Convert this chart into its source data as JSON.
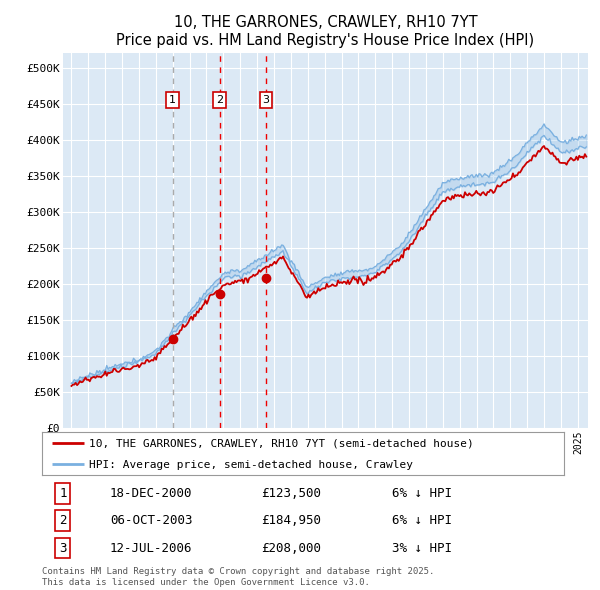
{
  "title": "10, THE GARRONES, CRAWLEY, RH10 7YT",
  "subtitle": "Price paid vs. HM Land Registry's House Price Index (HPI)",
  "legend_property": "10, THE GARRONES, CRAWLEY, RH10 7YT (semi-detached house)",
  "legend_hpi": "HPI: Average price, semi-detached house, Crawley",
  "footnote_line1": "Contains HM Land Registry data © Crown copyright and database right 2025.",
  "footnote_line2": "This data is licensed under the Open Government Licence v3.0.",
  "bg_color": "#dce9f5",
  "grid_color": "#ffffff",
  "sale_markers": [
    {
      "label": 1,
      "date_x": 2001.0,
      "price": 123500,
      "text": "18-DEC-2000",
      "amount": "£123,500",
      "pct": "6% ↓ HPI"
    },
    {
      "label": 2,
      "date_x": 2003.78,
      "price": 184950,
      "text": "06-OCT-2003",
      "amount": "£184,950",
      "pct": "6% ↓ HPI"
    },
    {
      "label": 3,
      "date_x": 2006.53,
      "price": 208000,
      "text": "12-JUL-2006",
      "amount": "£208,000",
      "pct": "3% ↓ HPI"
    }
  ],
  "ylim": [
    0,
    520000
  ],
  "xlim": [
    1994.5,
    2025.6
  ],
  "yticks": [
    0,
    50000,
    100000,
    150000,
    200000,
    250000,
    300000,
    350000,
    400000,
    450000,
    500000
  ],
  "ytick_labels": [
    "£0",
    "£50K",
    "£100K",
    "£150K",
    "£200K",
    "£250K",
    "£300K",
    "£350K",
    "£400K",
    "£450K",
    "£500K"
  ],
  "hpi_color": "#7ab0e0",
  "price_color": "#cc0000",
  "marker_color": "#cc0000",
  "vline_color": "#ee0000",
  "sale_box_color": "#cc0000",
  "vline1_style": "dashed",
  "vline2_style": "dashed",
  "vline3_style": "dashed"
}
